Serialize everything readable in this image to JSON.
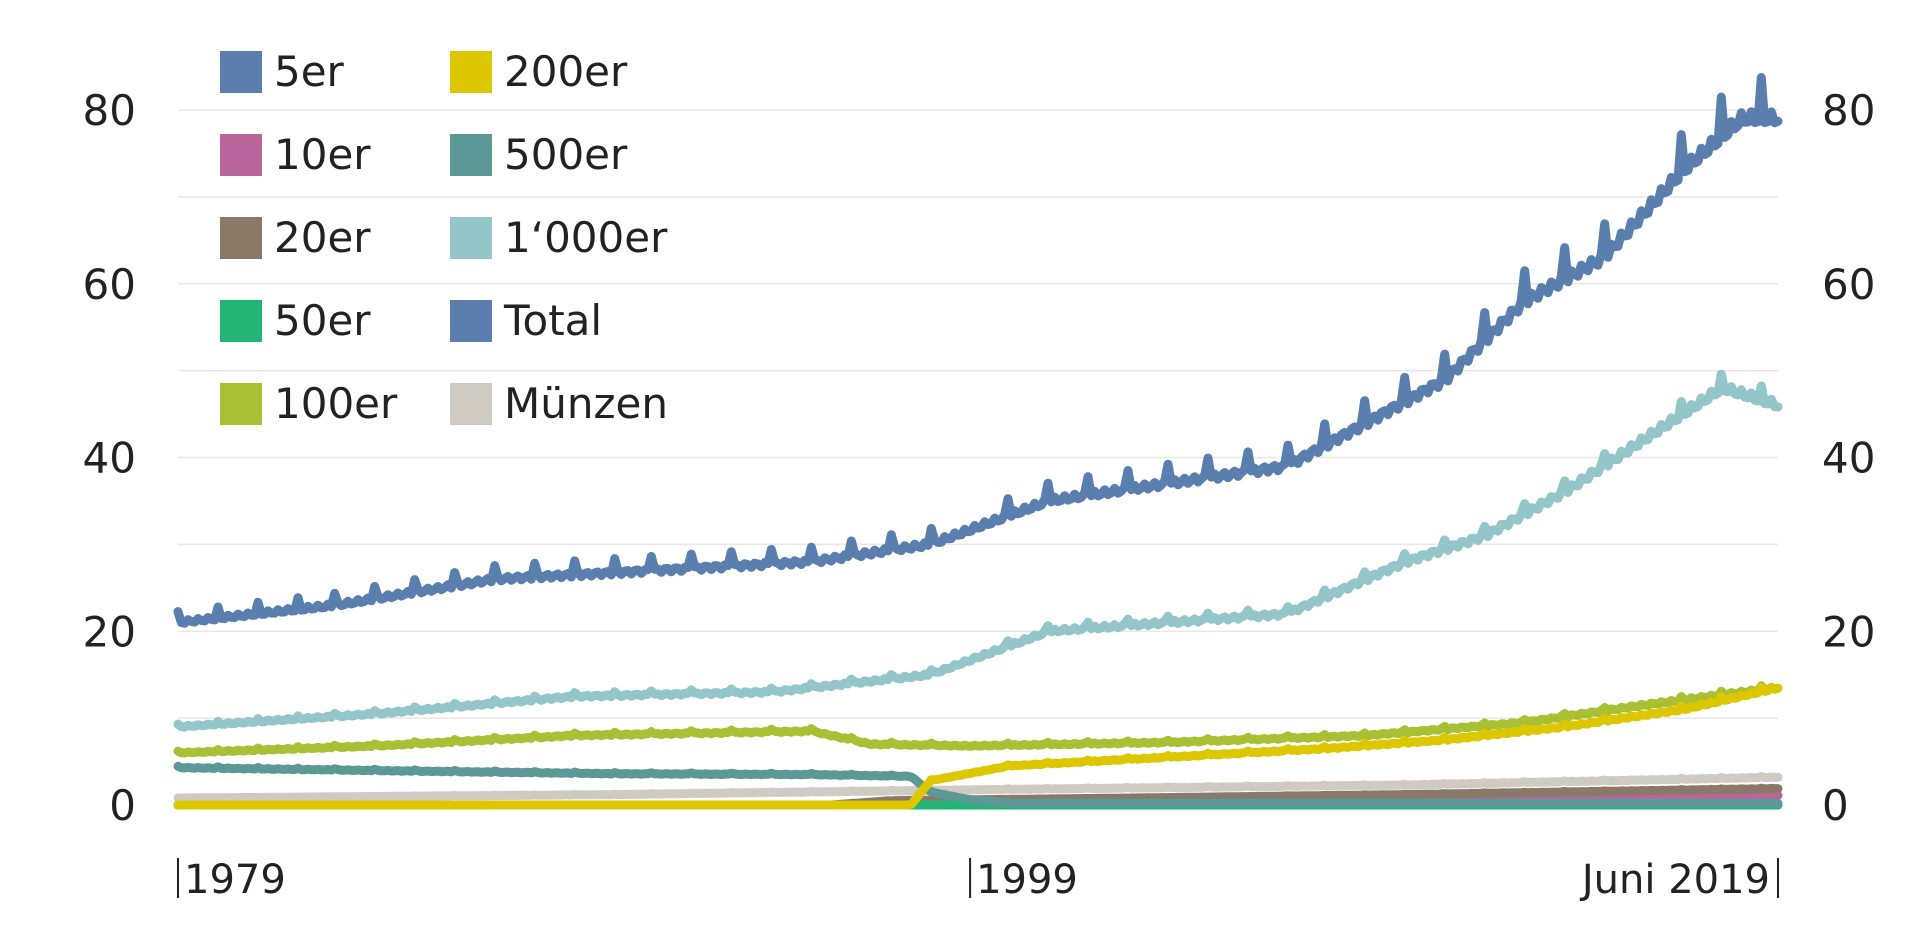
{
  "chart_data": {
    "type": "line",
    "ylim": [
      0,
      80
    ],
    "yticks": [
      "0",
      "20",
      "40",
      "60",
      "80"
    ],
    "xticks": [
      "1979",
      "1999",
      "Juni 2019"
    ],
    "legend_placement": "top-left",
    "grid": true,
    "series": [
      {
        "name": "5er",
        "color": "#5a7fae",
        "x": [
          1979,
          2019.4
        ],
        "y": [
          0,
          0
        ]
      },
      {
        "name": "10er",
        "color": "#b9649a",
        "x": [
          1979,
          1995.5,
          1997,
          2003,
          2010,
          2019.4
        ],
        "y": [
          0,
          0,
          0.3,
          0.4,
          0.6,
          1.1
        ]
      },
      {
        "name": "20er",
        "color": "#8a7968",
        "x": [
          1979,
          1995.5,
          1997,
          2003,
          2010,
          2019.4
        ],
        "y": [
          0,
          0,
          0.5,
          0.8,
          1.2,
          1.9
        ]
      },
      {
        "name": "50er",
        "color": "#23b574",
        "x": [
          1979,
          2019.4
        ],
        "y": [
          0,
          0
        ]
      },
      {
        "name": "100er",
        "color": "#a9c035",
        "x": [
          1979,
          1984,
          1989,
          1995,
          1996.5,
          1999,
          2004,
          2009,
          2013,
          2016,
          2019.4
        ],
        "y": [
          6,
          6.8,
          8,
          8.5,
          7,
          6.8,
          7.2,
          8,
          9.5,
          11.5,
          13.5
        ]
      },
      {
        "name": "200er",
        "color": "#dcc700",
        "x": [
          1979,
          1997.5,
          1998,
          2000,
          2004,
          2008,
          2011,
          2014,
          2017,
          2019.4
        ],
        "y": [
          0,
          0,
          2.8,
          4.5,
          5.5,
          6.5,
          7.5,
          9,
          11,
          13.5
        ]
      },
      {
        "name": "500er",
        "color": "#5c9896",
        "x": [
          1979,
          1985,
          1990,
          1995,
          1997.5,
          1998,
          1999,
          2000,
          2019.4
        ],
        "y": [
          4.3,
          3.9,
          3.6,
          3.5,
          3.3,
          1.5,
          0.6,
          0.2,
          0.2
        ]
      },
      {
        "name": "1‘000er",
        "color": "#93c5c9",
        "x": [
          1979,
          1984,
          1989,
          1994,
          1998,
          2001,
          2004,
          2007,
          2010,
          2012,
          2014,
          2016,
          2018,
          2019.4
        ],
        "y": [
          9,
          10.5,
          12.5,
          13,
          15,
          20,
          21,
          22,
          28,
          31,
          36,
          42,
          48,
          46
        ]
      },
      {
        "name": "Total",
        "color": "#5a7fae",
        "x": [
          1979,
          1983,
          1987,
          1991,
          1995,
          1998,
          2001,
          2004,
          2007,
          2009,
          2011,
          2013,
          2015,
          2017,
          2018.5,
          2019.4
        ],
        "y": [
          21,
          23,
          26,
          27,
          28,
          30,
          35,
          37,
          39,
          44,
          49,
          58,
          63,
          73,
          79,
          79
        ]
      },
      {
        "name": "Münzen",
        "color": "#cfcbc2",
        "x": [
          1979,
          1990,
          2000,
          2010,
          2019.4
        ],
        "y": [
          0.8,
          1.2,
          1.8,
          2.3,
          3.2
        ]
      }
    ]
  }
}
